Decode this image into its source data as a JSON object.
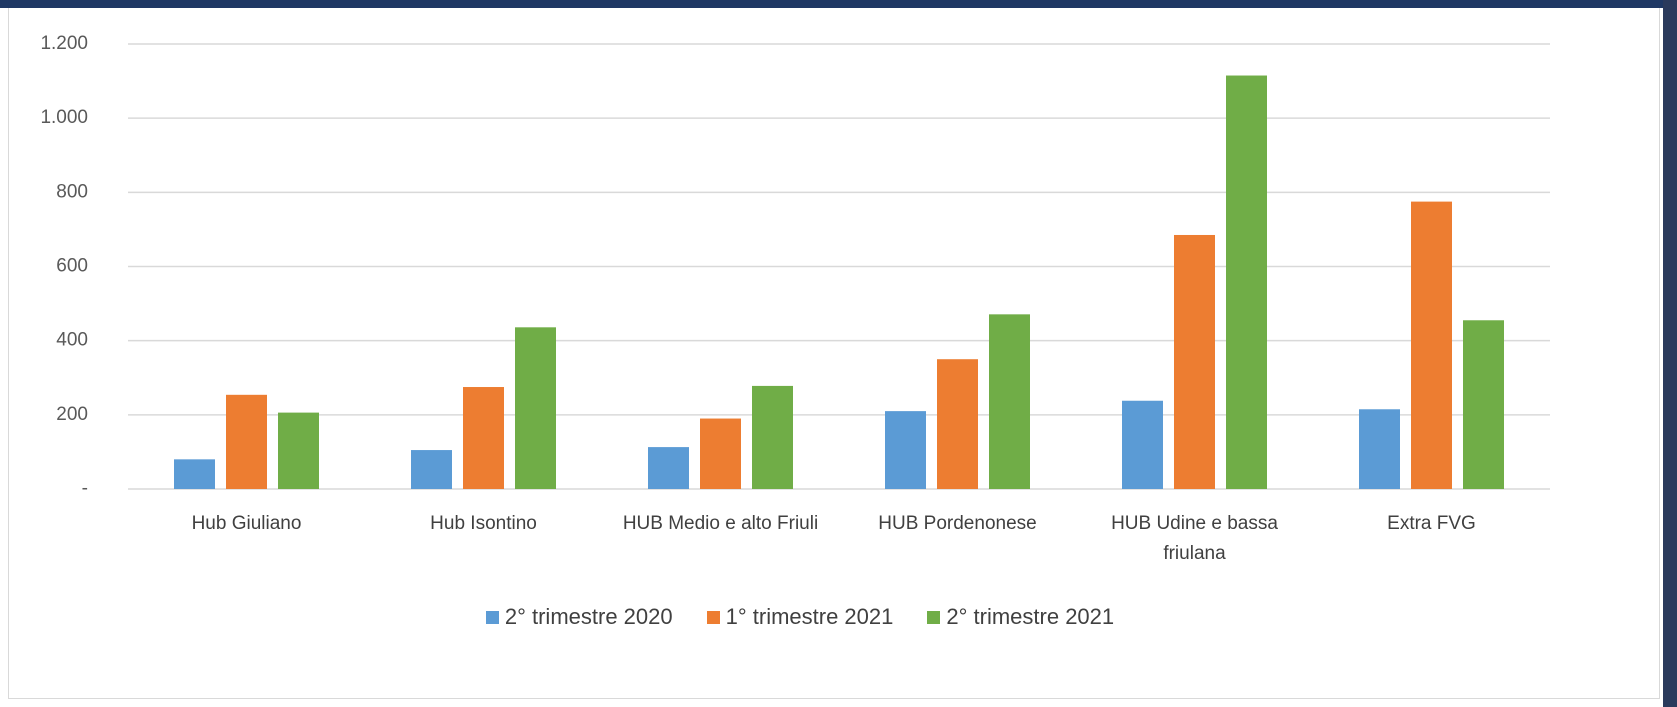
{
  "chart_data": {
    "type": "bar",
    "categories": [
      "Hub Giuliano",
      "Hub Isontino",
      "HUB Medio e alto Friuli",
      "HUB Pordenonese",
      "HUB Udine e bassa friulana",
      "Extra FVG"
    ],
    "series": [
      {
        "name": "2° trimestre 2020",
        "color": "#5b9bd5",
        "values": [
          80,
          105,
          113,
          210,
          238,
          215
        ]
      },
      {
        "name": "1° trimestre 2021",
        "color": "#ed7d31",
        "values": [
          254,
          275,
          190,
          350,
          685,
          775
        ]
      },
      {
        "name": "2° trimestre 2021",
        "color": "#70ad47",
        "values": [
          206,
          436,
          278,
          471,
          1115,
          455
        ]
      }
    ],
    "ylim": [
      0,
      1200
    ],
    "yticks": [
      {
        "value": 0,
        "label": "-"
      },
      200,
      400,
      600,
      800,
      {
        "value": 1000,
        "label": "1.000"
      },
      {
        "value": 1200,
        "label": "1.200"
      }
    ],
    "grid": true,
    "legend": "bottom"
  }
}
